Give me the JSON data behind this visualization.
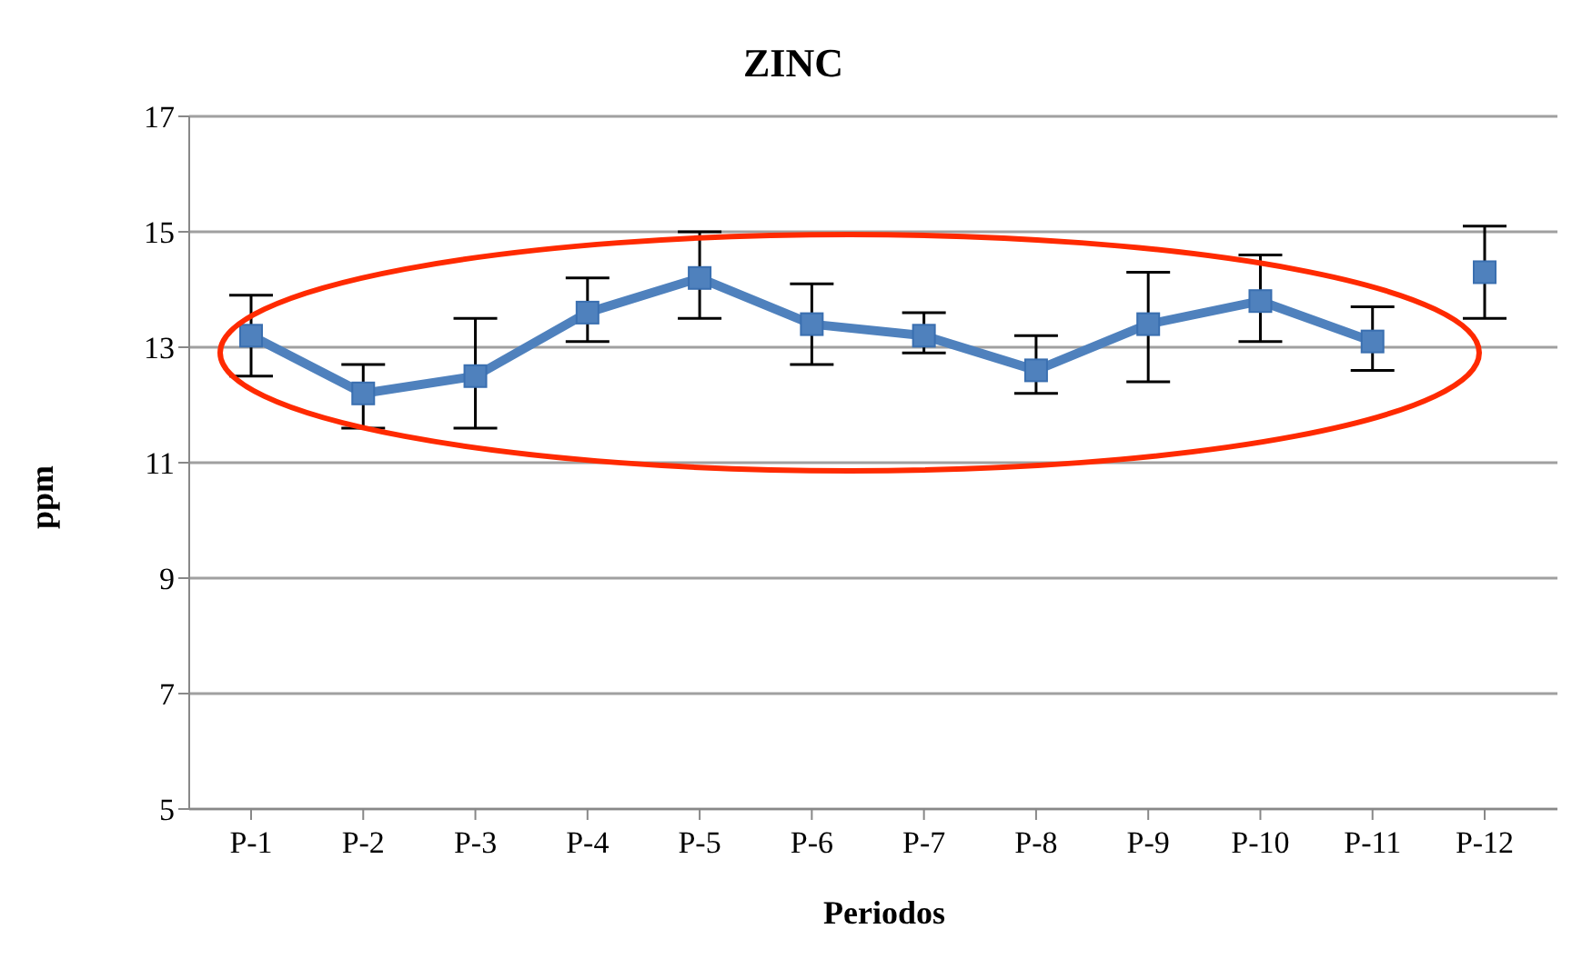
{
  "chart_data": {
    "type": "line",
    "title": "ZINC",
    "xlabel": "Periodos",
    "ylabel": "ppm",
    "categories": [
      "P-1",
      "P-2",
      "P-3",
      "P-4",
      "P-5",
      "P-6",
      "P-7",
      "P-8",
      "P-9",
      "P-10",
      "P-11",
      "P-12"
    ],
    "series": [
      {
        "color": "#4f81bd",
        "values": [
          13.2,
          12.2,
          12.5,
          13.6,
          14.2,
          13.4,
          13.2,
          12.6,
          13.4,
          13.8,
          13.1,
          null
        ],
        "errors": [
          [
            12.5,
            13.9
          ],
          [
            11.6,
            12.7
          ],
          [
            11.6,
            13.5
          ],
          [
            13.1,
            14.2
          ],
          [
            13.5,
            15.0
          ],
          [
            12.7,
            14.1
          ],
          [
            12.9,
            13.6
          ],
          [
            12.2,
            13.2
          ],
          [
            12.4,
            14.3
          ],
          [
            13.1,
            14.6
          ],
          [
            12.6,
            13.7
          ],
          null
        ]
      },
      {
        "color": "#4f81bd",
        "values": [
          null,
          null,
          null,
          null,
          null,
          null,
          null,
          null,
          null,
          null,
          null,
          14.3
        ],
        "errors": [
          null,
          null,
          null,
          null,
          null,
          null,
          null,
          null,
          null,
          null,
          null,
          [
            13.5,
            15.1
          ]
        ]
      }
    ],
    "ylim": [
      5,
      17
    ],
    "yticks": [
      5,
      7,
      9,
      11,
      13,
      15,
      17
    ],
    "grid": "y",
    "legend": false,
    "marker": "square",
    "line_style": "solid"
  }
}
